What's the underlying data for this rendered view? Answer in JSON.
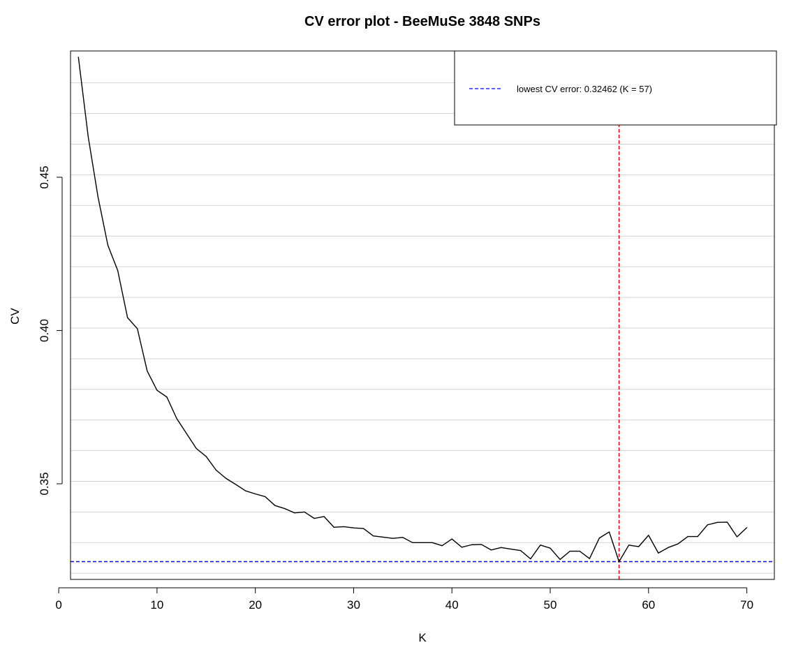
{
  "chart_data": {
    "type": "line",
    "title": "CV error plot - BeeMuSe  3848 SNPs",
    "xlabel": "K",
    "ylabel": "CV",
    "xlim": [
      1.2,
      72.8
    ],
    "ylim": [
      0.3188,
      0.4912
    ],
    "x_ticks": [
      0,
      10,
      20,
      30,
      40,
      50,
      60,
      70
    ],
    "y_ticks": [
      0.35,
      0.4,
      0.45
    ],
    "x_tick_labels": [
      "0",
      "10",
      "20",
      "30",
      "40",
      "50",
      "60",
      "70"
    ],
    "y_tick_labels": [
      "0.35",
      "0.40",
      "0.45"
    ],
    "horizontal_grid": [
      0.3208,
      0.3308,
      0.3408,
      0.3508,
      0.3608,
      0.3708,
      0.3808,
      0.3908,
      0.4008,
      0.4108,
      0.4208,
      0.4308,
      0.4408,
      0.4508,
      0.4608,
      0.4708,
      0.4808
    ],
    "grid": true,
    "legend_position": "top-right",
    "series": [
      {
        "color": "#000000",
        "x": [
          2,
          3,
          4,
          5,
          6,
          7,
          8,
          9,
          10,
          11,
          12,
          13,
          14,
          15,
          16,
          17,
          18,
          19,
          20,
          21,
          22,
          23,
          24,
          25,
          26,
          27,
          28,
          29,
          30,
          31,
          32,
          33,
          34,
          35,
          36,
          37,
          38,
          39,
          40,
          41,
          42,
          43,
          44,
          45,
          46,
          47,
          48,
          49,
          50,
          51,
          52,
          53,
          54,
          55,
          56,
          57,
          58,
          59,
          60,
          61,
          62,
          63,
          64,
          65,
          66,
          67,
          68,
          69,
          70
        ],
        "values": [
          0.4892,
          0.4632,
          0.4435,
          0.4278,
          0.4196,
          0.4042,
          0.4006,
          0.3868,
          0.3805,
          0.3783,
          0.3713,
          0.3664,
          0.3615,
          0.3589,
          0.3545,
          0.3518,
          0.3498,
          0.3477,
          0.3467,
          0.3458,
          0.3429,
          0.3419,
          0.3405,
          0.3408,
          0.3387,
          0.3393,
          0.3358,
          0.336,
          0.3356,
          0.3354,
          0.333,
          0.3326,
          0.3322,
          0.3325,
          0.3308,
          0.3308,
          0.3308,
          0.3298,
          0.332,
          0.3293,
          0.3301,
          0.3302,
          0.3284,
          0.3292,
          0.3287,
          0.3282,
          0.3255,
          0.33,
          0.329,
          0.3253,
          0.328,
          0.328,
          0.3256,
          0.3323,
          0.3343,
          0.3246,
          0.33,
          0.3295,
          0.3332,
          0.3274,
          0.3292,
          0.3304,
          0.3328,
          0.3328,
          0.3366,
          0.3374,
          0.3375,
          0.3327,
          0.3357
        ]
      }
    ],
    "reference_lines": [
      {
        "orientation": "horizontal",
        "value": 0.32462,
        "color": "#0000ff",
        "style": "dashed"
      },
      {
        "orientation": "vertical",
        "value": 57,
        "color": "#ff0000",
        "style": "dashed"
      }
    ],
    "legend": [
      {
        "label": "lowest CV error: 0.32462 (K = 57)",
        "color": "#0000ff",
        "style": "dashed"
      }
    ]
  }
}
